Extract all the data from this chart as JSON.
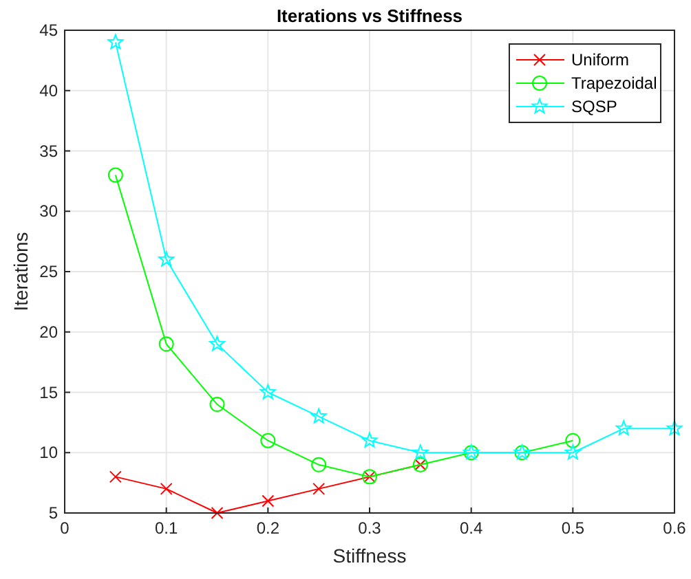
{
  "chart_data": {
    "type": "line",
    "title": "Iterations vs Stiffness",
    "xlabel": "Stiffness",
    "ylabel": "Iterations",
    "xlim": [
      0,
      0.6
    ],
    "xticks": [
      0,
      0.1,
      0.2,
      0.3,
      0.4,
      0.5,
      0.6
    ],
    "ylim": [
      5,
      45
    ],
    "yticks": [
      5,
      10,
      15,
      20,
      25,
      30,
      35,
      40,
      45
    ],
    "grid": true,
    "legend": "top right",
    "series": [
      {
        "name": "Uniform",
        "color": "#ff0000",
        "marker": "cross",
        "x": [
          0.05,
          0.1,
          0.15,
          0.2,
          0.25,
          0.3,
          0.35
        ],
        "values": [
          8,
          7,
          5,
          6,
          7,
          8,
          9
        ]
      },
      {
        "name": "Trapezoidal",
        "color": "#00ff00",
        "marker": "circle",
        "x": [
          0.05,
          0.1,
          0.15,
          0.2,
          0.25,
          0.3,
          0.35,
          0.4,
          0.45,
          0.5
        ],
        "values": [
          33,
          19,
          14,
          11,
          9,
          8,
          9,
          10,
          10,
          11
        ]
      },
      {
        "name": "SQSP",
        "color": "#00ffff",
        "marker": "star",
        "x": [
          0.05,
          0.1,
          0.15,
          0.2,
          0.25,
          0.3,
          0.35,
          0.4,
          0.45,
          0.5,
          0.55,
          0.6
        ],
        "values": [
          44,
          26,
          19,
          15,
          13,
          11,
          10,
          10,
          10,
          10,
          12,
          12
        ]
      }
    ]
  }
}
